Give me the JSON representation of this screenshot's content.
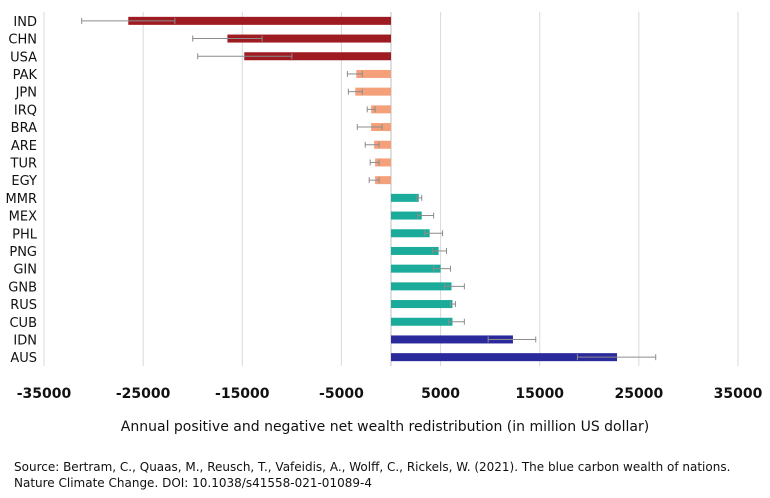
{
  "chart_data": {
    "type": "bar",
    "orientation": "horizontal",
    "categories": [
      "IND",
      "CHN",
      "USA",
      "PAK",
      "JPN",
      "IRQ",
      "BRA",
      "ARE",
      "TUR",
      "EGY",
      "MMR",
      "MEX",
      "PHL",
      "PNG",
      "GIN",
      "GNB",
      "RUS",
      "CUB",
      "IDN",
      "AUS"
    ],
    "values": [
      -26500,
      -16500,
      -14800,
      -3500,
      -3600,
      -2000,
      -2000,
      -1700,
      -1600,
      -1600,
      2800,
      3100,
      3900,
      4800,
      5000,
      6100,
      6200,
      6200,
      12300,
      22800
    ],
    "error_low": [
      -31200,
      -20000,
      -19500,
      -4400,
      -4300,
      -2400,
      -3400,
      -2600,
      -2100,
      -2200,
      2600,
      2700,
      3400,
      4200,
      4300,
      5400,
      6000,
      5800,
      9800,
      18800
    ],
    "error_high": [
      -21800,
      -13000,
      -10000,
      -2900,
      -2900,
      -1600,
      -900,
      -1200,
      -1200,
      -1200,
      3100,
      4300,
      5200,
      5600,
      6000,
      7400,
      6500,
      7400,
      14600,
      26700
    ],
    "bar_colors": [
      "#9e1b22",
      "#9e1b22",
      "#9e1b22",
      "#f4a07a",
      "#f4a07a",
      "#f4a07a",
      "#f4a07a",
      "#f4a07a",
      "#f4a07a",
      "#f4a07a",
      "#1aab9b",
      "#1aab9b",
      "#1aab9b",
      "#1aab9b",
      "#1aab9b",
      "#1aab9b",
      "#1aab9b",
      "#1aab9b",
      "#2b2a9c",
      "#2b2a9c"
    ],
    "xticks": [
      -35000,
      -25000,
      -15000,
      -5000,
      5000,
      15000,
      25000,
      35000
    ],
    "xtick_labels": [
      "-35000",
      "-25000",
      "-15000",
      "-5000",
      "5000",
      "15000",
      "25000",
      "35000"
    ],
    "xlim": [
      -35000,
      35000
    ],
    "grid": "vertical",
    "xlabel": "Annual positive and negative net wealth redistribution (in million US dollar)",
    "ylabel": "",
    "title": ""
  },
  "source_text": "Source: Bertram, C., Quaas, M., Reusch, T., Vafeidis, A., Wolff, C., Rickels, W. (2021). The blue carbon wealth of nations. Nature Climate Change. DOI: 10.1038/s41558-021-01089-4",
  "colors": {
    "grid": "#d9d9d9",
    "axis": "#bfbfbf",
    "error_bar": "#8c8c8c"
  }
}
